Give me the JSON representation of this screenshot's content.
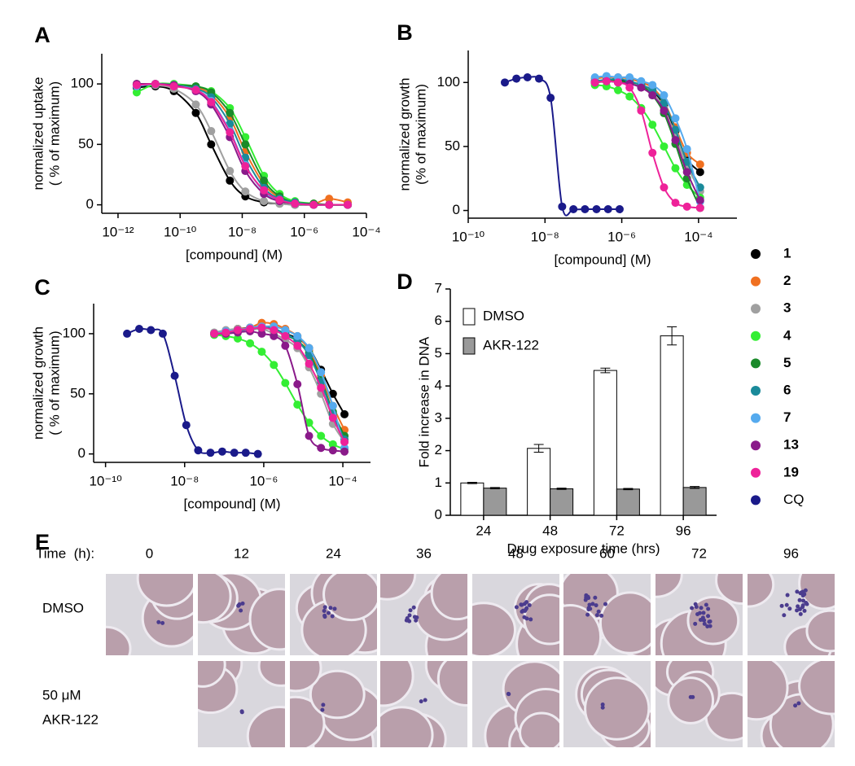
{
  "chart_data": [
    {
      "panel": "A",
      "type": "scatter",
      "fit_line": true,
      "xscale": "log",
      "xlabel": "[compound] (M)",
      "ylabel": [
        "normalized uptake",
        "( % of maximum)"
      ],
      "xlim": [
        3e-13,
        0.0001
      ],
      "xticks": [
        {
          "value": 1e-12,
          "label": "10⁻¹²"
        },
        {
          "value": 1e-10,
          "label": "10⁻¹⁰"
        },
        {
          "value": 1e-08,
          "label": "10⁻⁸"
        },
        {
          "value": 1e-06,
          "label": "10⁻⁶"
        },
        {
          "value": 0.0001,
          "label": "10⁻⁴"
        }
      ],
      "ylim": [
        -7,
        125
      ],
      "yticks": [
        0,
        50,
        100
      ],
      "x": [
        4e-12,
        1.6e-11,
        6.3e-11,
        3.2e-10,
        1e-09,
        4e-09,
        1.26e-08,
        5e-08,
        1.6e-07,
        5e-07,
        2e-06,
        6.3e-06,
        2.5e-05
      ],
      "series": [
        {
          "name": "1",
          "color": "#000000",
          "values": [
            97,
            98,
            94,
            76,
            50,
            20,
            7,
            2,
            1,
            0,
            0,
            0,
            0
          ]
        },
        {
          "name": "2",
          "color": "#f07020",
          "values": [
            100,
            100,
            99,
            97,
            91,
            72,
            44,
            17,
            6,
            2,
            1,
            5,
            2
          ]
        },
        {
          "name": "3",
          "color": "#a0a0a0",
          "values": [
            99,
            99,
            96,
            83,
            61,
            28,
            11,
            3,
            1,
            0,
            0,
            0,
            0
          ]
        },
        {
          "name": "4",
          "color": "#33ee33",
          "values": [
            93,
            100,
            100,
            98,
            94,
            80,
            56,
            24,
            9,
            3,
            1,
            0,
            0
          ]
        },
        {
          "name": "5",
          "color": "#1a8a2a",
          "values": [
            100,
            100,
            99,
            98,
            93,
            76,
            50,
            20,
            7,
            2,
            1,
            0,
            0
          ]
        },
        {
          "name": "6",
          "color": "#1a8a9a",
          "values": [
            99,
            100,
            99,
            96,
            89,
            67,
            39,
            14,
            5,
            2,
            0,
            0,
            0
          ]
        },
        {
          "name": "7",
          "color": "#55aaee",
          "values": [
            98,
            100,
            99,
            95,
            86,
            61,
            33,
            11,
            4,
            1,
            0,
            0,
            0
          ]
        },
        {
          "name": "13",
          "color": "#8a1a8a",
          "values": [
            100,
            100,
            99,
            94,
            83,
            56,
            28,
            9,
            3,
            1,
            0,
            0,
            0
          ]
        },
        {
          "name": "19",
          "color": "#ee2299",
          "values": [
            99,
            100,
            98,
            95,
            85,
            60,
            32,
            12,
            4,
            1,
            0,
            0,
            0
          ]
        }
      ]
    },
    {
      "panel": "B",
      "type": "scatter",
      "fit_line": true,
      "xscale": "log",
      "legend": "right",
      "xlabel": "[compound] (M)",
      "ylabel": [
        "normalized growth",
        "(% of maximum)"
      ],
      "xlim": [
        1e-10,
        0.001
      ],
      "xticks": [
        {
          "value": 1e-10,
          "label": "10⁻¹⁰"
        },
        {
          "value": 1e-08,
          "label": "10⁻⁸"
        },
        {
          "value": 1e-06,
          "label": "10⁻⁶"
        },
        {
          "value": 0.0001,
          "label": "10⁻⁴"
        }
      ],
      "ylim": [
        -6,
        125
      ],
      "yticks": [
        0,
        50,
        100
      ],
      "x": [
        2e-07,
        4e-07,
        8e-07,
        1.6e-06,
        3.2e-06,
        6.3e-06,
        1.26e-05,
        2.5e-05,
        5e-05,
        0.00011
      ],
      "series": [
        {
          "name": "1",
          "color": "#000000",
          "values": [
            100,
            101,
            102,
            100,
            97,
            93,
            82,
            62,
            40,
            30
          ]
        },
        {
          "name": "2",
          "color": "#f07020",
          "values": [
            103,
            104,
            104,
            103,
            100,
            96,
            85,
            65,
            45,
            36
          ]
        },
        {
          "name": "3",
          "color": "#a0a0a0",
          "values": [
            101,
            102,
            100,
            99,
            97,
            92,
            80,
            58,
            35,
            15
          ]
        },
        {
          "name": "4",
          "color": "#33ee33",
          "values": [
            98,
            97,
            94,
            89,
            80,
            67,
            50,
            33,
            20,
            10
          ]
        },
        {
          "name": "5",
          "color": "#1a8a2a",
          "values": [
            100,
            102,
            101,
            100,
            98,
            90,
            76,
            52,
            25,
            2
          ]
        },
        {
          "name": "6",
          "color": "#1a8a9a",
          "values": [
            101,
            102,
            103,
            101,
            98,
            94,
            84,
            63,
            38,
            18
          ]
        },
        {
          "name": "7",
          "color": "#55aaee",
          "values": [
            104,
            105,
            104,
            104,
            101,
            98,
            90,
            72,
            48,
            7
          ]
        },
        {
          "name": "13",
          "color": "#8a1a8a",
          "values": [
            100,
            101,
            100,
            99,
            96,
            90,
            78,
            55,
            30,
            8
          ]
        },
        {
          "name": "19",
          "color": "#ee2299",
          "values": [
            100,
            101,
            100,
            96,
            78,
            45,
            18,
            6,
            3,
            2
          ]
        },
        {
          "name": "CQ",
          "color": "#1a1a8a",
          "x": [
            9e-10,
            1.8e-09,
            3.5e-09,
            7e-09,
            1.4e-08,
            2.8e-08,
            5.5e-08,
            1.1e-07,
            2.2e-07,
            4.4e-07,
            8.8e-07
          ],
          "values": [
            100,
            103,
            104,
            103,
            88,
            3,
            1,
            1,
            1,
            1,
            1
          ]
        }
      ]
    },
    {
      "panel": "C",
      "type": "scatter",
      "fit_line": true,
      "xscale": "log",
      "xlabel": "[compound] (M)",
      "ylabel": [
        "normalized growth",
        "( % of maximum)"
      ],
      "xlim": [
        5e-11,
        0.0005
      ],
      "xticks": [
        {
          "value": 1e-10,
          "label": "10⁻¹⁰"
        },
        {
          "value": 1e-08,
          "label": "10⁻⁸"
        },
        {
          "value": 1e-06,
          "label": "10⁻⁶"
        },
        {
          "value": 0.0001,
          "label": "10⁻⁴"
        }
      ],
      "ylim": [
        -7,
        125
      ],
      "yticks": [
        0,
        50,
        100
      ],
      "x": [
        5.6e-08,
        1.1e-07,
        2.2e-07,
        4.5e-07,
        8.9e-07,
        1.8e-06,
        3.5e-06,
        7.1e-06,
        1.4e-05,
        2.8e-05,
        5.6e-05,
        0.00011
      ],
      "series": [
        {
          "name": "1",
          "color": "#000000",
          "values": [
            100,
            102,
            104,
            105,
            106,
            104,
            100,
            96,
            88,
            70,
            50,
            33
          ]
        },
        {
          "name": "2",
          "color": "#f07020",
          "values": [
            100,
            102,
            104,
            105,
            109,
            108,
            104,
            98,
            86,
            65,
            40,
            20
          ]
        },
        {
          "name": "3",
          "color": "#a0a0a0",
          "values": [
            101,
            103,
            104,
            103,
            104,
            100,
            95,
            88,
            72,
            50,
            25,
            10
          ]
        },
        {
          "name": "4",
          "color": "#33ee33",
          "values": [
            99,
            98,
            96,
            92,
            85,
            74,
            59,
            41,
            26,
            15,
            8,
            4
          ]
        },
        {
          "name": "5",
          "color": "#1a8a2a",
          "values": [
            100,
            101,
            103,
            104,
            105,
            103,
            99,
            94,
            84,
            62,
            35,
            15
          ]
        },
        {
          "name": "6",
          "color": "#1a8a9a",
          "values": [
            100,
            101,
            102,
            104,
            105,
            104,
            100,
            94,
            82,
            60,
            33,
            12
          ]
        },
        {
          "name": "7",
          "color": "#55aaee",
          "values": [
            100,
            102,
            103,
            105,
            106,
            106,
            103,
            98,
            88,
            68,
            40,
            5
          ]
        },
        {
          "name": "13",
          "color": "#8a1a8a",
          "values": [
            100,
            100,
            101,
            102,
            100,
            98,
            90,
            58,
            15,
            5,
            3,
            2
          ]
        },
        {
          "name": "19",
          "color": "#ee2299",
          "values": [
            100,
            101,
            103,
            104,
            105,
            103,
            98,
            90,
            75,
            55,
            30,
            10
          ]
        },
        {
          "name": "CQ",
          "color": "#1a1a8a",
          "x": [
            3.5e-10,
            7.1e-10,
            1.4e-09,
            2.8e-09,
            5.6e-09,
            1.1e-08,
            2.2e-08,
            4.5e-08,
            8.9e-08,
            1.8e-07,
            3.5e-07,
            7.1e-07
          ],
          "values": [
            100,
            104,
            103,
            100,
            65,
            24,
            3,
            1,
            2,
            1,
            1,
            0
          ]
        }
      ]
    },
    {
      "panel": "D",
      "type": "bar",
      "legend": "upper left",
      "xlabel": "Drug exposure time (hrs)",
      "ylabel": [
        "Fold increase in DNA"
      ],
      "categories": [
        "24",
        "48",
        "72",
        "96"
      ],
      "ylim": [
        0,
        7
      ],
      "yticks": [
        0,
        1,
        2,
        3,
        4,
        5,
        6,
        7
      ],
      "series": [
        {
          "name": "DMSO",
          "color": "#ffffff",
          "values": [
            1.0,
            2.07,
            4.48,
            5.55
          ],
          "errors": [
            0.02,
            0.12,
            0.07,
            0.28
          ]
        },
        {
          "name": "AKR-122",
          "color": "#999999",
          "values": [
            0.84,
            0.82,
            0.81,
            0.86
          ],
          "errors": [
            0.02,
            0.02,
            0.02,
            0.03
          ]
        }
      ]
    }
  ],
  "panel_e": {
    "panel": "E",
    "time_label": "Time  (h):",
    "times": [
      0,
      12,
      24,
      36,
      48,
      60,
      72,
      96
    ],
    "rows": [
      {
        "label": [
          "DMSO"
        ]
      },
      {
        "label": [
          "50 μM",
          "AKR-122"
        ]
      }
    ]
  }
}
